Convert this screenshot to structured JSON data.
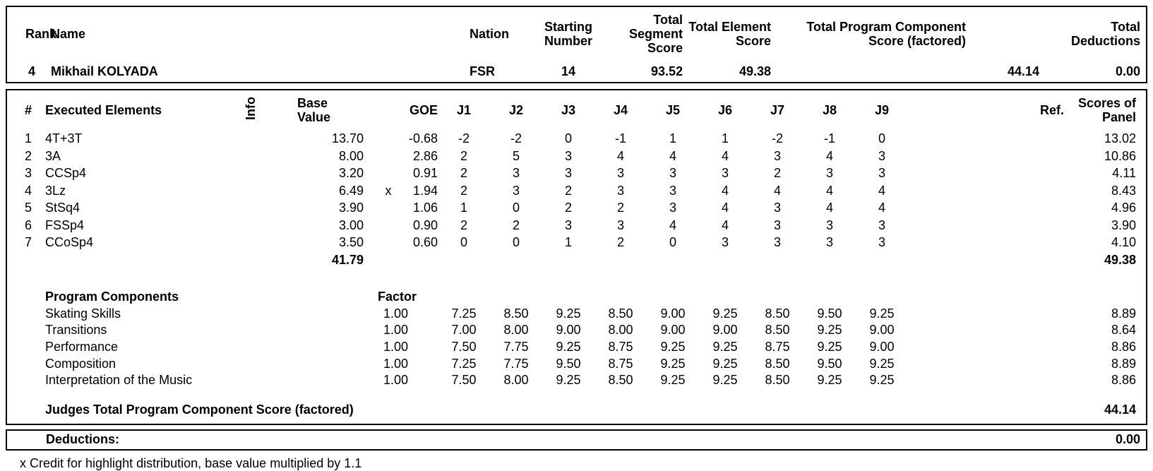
{
  "summary": {
    "headers": {
      "rank": "Rank",
      "name": "Name",
      "nation": "Nation",
      "starting_number": "Starting Number",
      "segment": "Total Segment Score",
      "element": "Total Element Score",
      "pcs": "Total Program Component Score (factored)",
      "deductions": "Total Deductions"
    },
    "skater": {
      "rank": "4",
      "name": "Mikhail KOLYADA",
      "nation": "FSR",
      "starting_number": "14",
      "segment_score": "93.52",
      "element_score": "49.38",
      "pcs_factored": "44.14",
      "deductions": "0.00"
    }
  },
  "elements": {
    "headers": {
      "num": "#",
      "name": "Executed Elements",
      "info": "Info",
      "base": "Base Value",
      "goe": "GOE",
      "judges": [
        "J1",
        "J2",
        "J3",
        "J4",
        "J5",
        "J6",
        "J7",
        "J8",
        "J9"
      ],
      "ref": "Ref.",
      "panel": "Scores of Panel"
    },
    "rows": [
      {
        "num": "1",
        "name": "4T+3T",
        "info": "",
        "base": "13.70",
        "x": "",
        "goe": "-0.68",
        "judges": [
          "-2",
          "-2",
          "0",
          "-1",
          "1",
          "1",
          "-2",
          "-1",
          "0"
        ],
        "ref": "",
        "panel": "13.02"
      },
      {
        "num": "2",
        "name": "3A",
        "info": "",
        "base": "8.00",
        "x": "",
        "goe": "2.86",
        "judges": [
          "2",
          "5",
          "3",
          "4",
          "4",
          "4",
          "3",
          "4",
          "3"
        ],
        "ref": "",
        "panel": "10.86"
      },
      {
        "num": "3",
        "name": "CCSp4",
        "info": "",
        "base": "3.20",
        "x": "",
        "goe": "0.91",
        "judges": [
          "2",
          "3",
          "3",
          "3",
          "3",
          "3",
          "2",
          "3",
          "3"
        ],
        "ref": "",
        "panel": "4.11"
      },
      {
        "num": "4",
        "name": "3Lz",
        "info": "",
        "base": "6.49",
        "x": "x",
        "goe": "1.94",
        "judges": [
          "2",
          "3",
          "2",
          "3",
          "3",
          "4",
          "4",
          "4",
          "4"
        ],
        "ref": "",
        "panel": "8.43"
      },
      {
        "num": "5",
        "name": "StSq4",
        "info": "",
        "base": "3.90",
        "x": "",
        "goe": "1.06",
        "judges": [
          "1",
          "0",
          "2",
          "2",
          "3",
          "4",
          "3",
          "4",
          "4"
        ],
        "ref": "",
        "panel": "4.96"
      },
      {
        "num": "6",
        "name": "FSSp4",
        "info": "",
        "base": "3.00",
        "x": "",
        "goe": "0.90",
        "judges": [
          "2",
          "2",
          "3",
          "3",
          "4",
          "4",
          "3",
          "3",
          "3"
        ],
        "ref": "",
        "panel": "3.90"
      },
      {
        "num": "7",
        "name": "CCoSp4",
        "info": "",
        "base": "3.50",
        "x": "",
        "goe": "0.60",
        "judges": [
          "0",
          "0",
          "1",
          "2",
          "0",
          "3",
          "3",
          "3",
          "3"
        ],
        "ref": "",
        "panel": "4.10"
      }
    ],
    "totals": {
      "base": "41.79",
      "panel": "49.38"
    }
  },
  "components": {
    "title": "Program Components",
    "factor_label": "Factor",
    "rows": [
      {
        "name": "Skating Skills",
        "factor": "1.00",
        "judges": [
          "7.25",
          "8.50",
          "9.25",
          "8.50",
          "9.00",
          "9.25",
          "8.50",
          "9.50",
          "9.25"
        ],
        "panel": "8.89"
      },
      {
        "name": "Transitions",
        "factor": "1.00",
        "judges": [
          "7.00",
          "8.00",
          "9.00",
          "8.00",
          "9.00",
          "9.00",
          "8.50",
          "9.25",
          "9.00"
        ],
        "panel": "8.64"
      },
      {
        "name": "Performance",
        "factor": "1.00",
        "judges": [
          "7.50",
          "7.75",
          "9.25",
          "8.75",
          "9.25",
          "9.25",
          "8.75",
          "9.25",
          "9.00"
        ],
        "panel": "8.86"
      },
      {
        "name": "Composition",
        "factor": "1.00",
        "judges": [
          "7.25",
          "7.75",
          "9.50",
          "8.75",
          "9.25",
          "9.25",
          "8.50",
          "9.50",
          "9.25"
        ],
        "panel": "8.89"
      },
      {
        "name": "Interpretation of the Music",
        "factor": "1.00",
        "judges": [
          "7.50",
          "8.00",
          "9.25",
          "8.50",
          "9.25",
          "9.25",
          "8.50",
          "9.25",
          "9.25"
        ],
        "panel": "8.86"
      }
    ],
    "total_label": "Judges Total Program Component Score (factored)",
    "total_value": "44.14"
  },
  "deductions": {
    "label": "Deductions:",
    "value": "0.00"
  },
  "footnote": "x Credit for highlight distribution, base value multiplied by 1.1"
}
